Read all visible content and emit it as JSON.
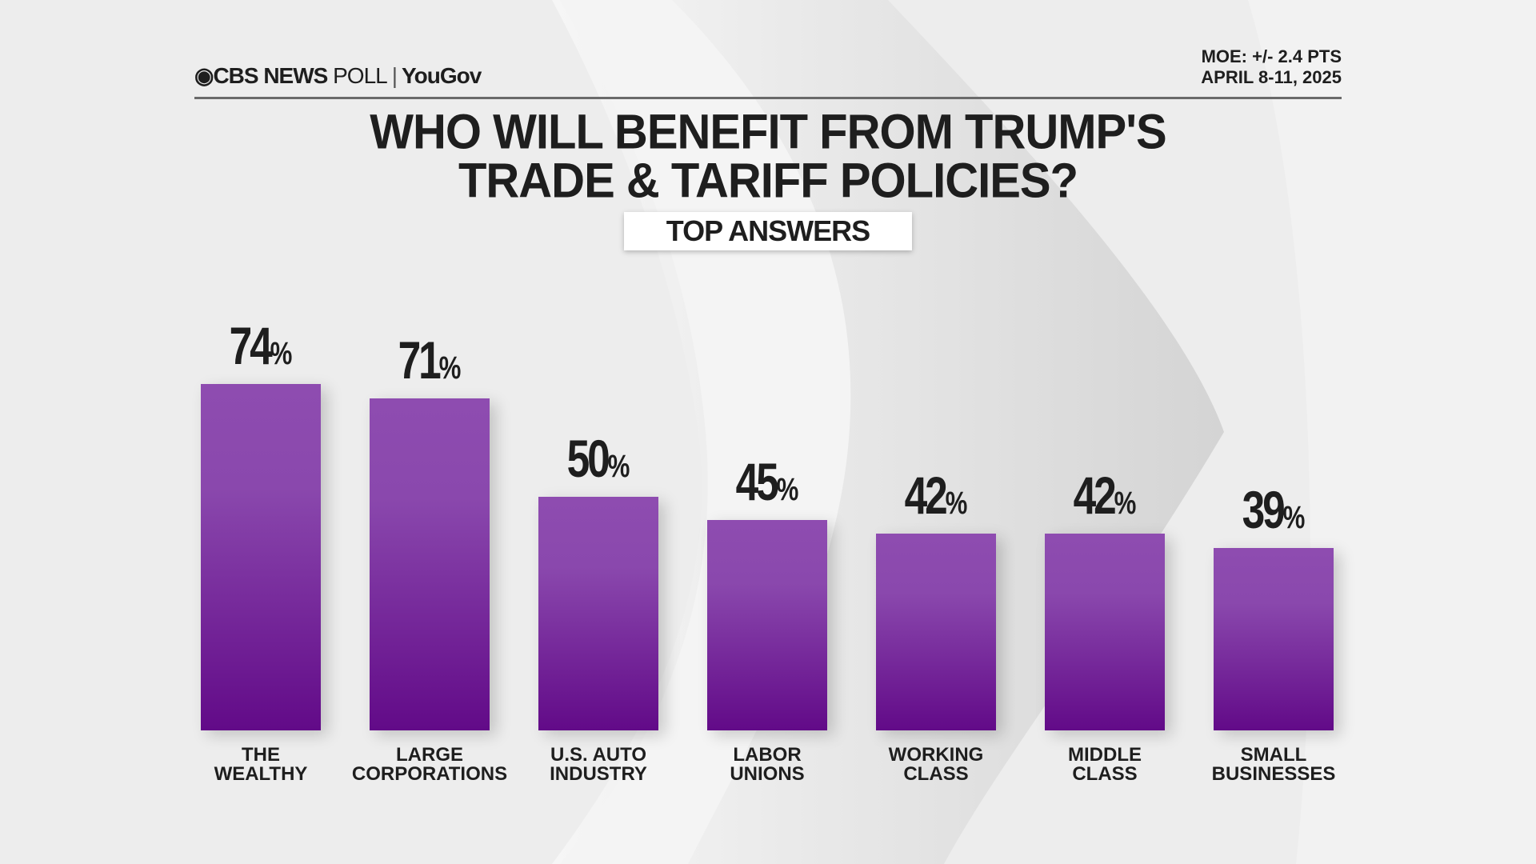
{
  "header": {
    "logo_cbs": "CBS NEWS",
    "logo_poll": "POLL",
    "logo_sep": "|",
    "logo_yougov": "YouGov",
    "moe": "MOE: +/- 2.4 PTS",
    "dates": "APRIL 8-11, 2025"
  },
  "chart_data": {
    "type": "bar",
    "title_line1": "WHO WILL BENEFIT FROM TRUMP'S",
    "title_line2": "TRADE & TARIFF POLICIES?",
    "subtitle": "TOP ANSWERS",
    "categories": [
      [
        "THE",
        "WEALTHY"
      ],
      [
        "LARGE",
        "CORPORATIONS"
      ],
      [
        "U.S. AUTO",
        "INDUSTRY"
      ],
      [
        "LABOR",
        "UNIONS"
      ],
      [
        "WORKING",
        "CLASS"
      ],
      [
        "MIDDLE",
        "CLASS"
      ],
      [
        "SMALL",
        "BUSINESSES"
      ]
    ],
    "values": [
      74,
      71,
      50,
      45,
      42,
      42,
      39
    ],
    "unit": "%",
    "ylim": [
      0,
      100
    ],
    "grid": false,
    "bar_color": "#7a2fa0"
  }
}
